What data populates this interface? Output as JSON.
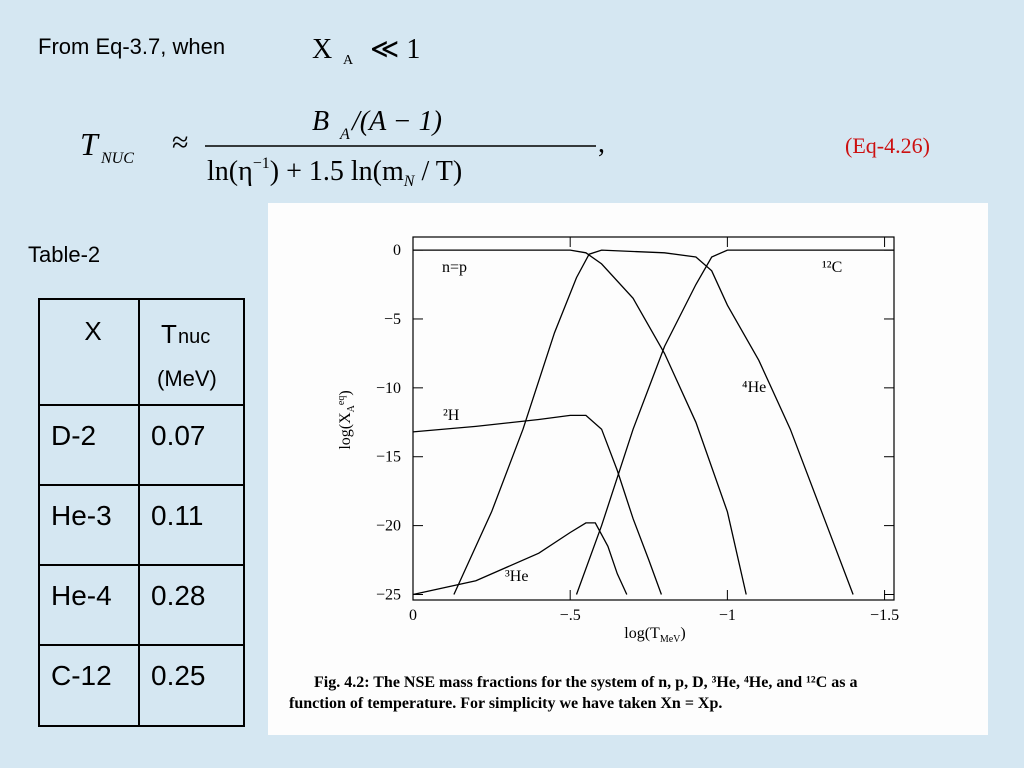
{
  "header": {
    "text": "From Eq-3.7,  when",
    "x_symbol": "X",
    "x_subscript": "A",
    "x_relation": "≪ 1"
  },
  "formula": {
    "lhs": "T",
    "lhs_subscript": "NUC",
    "relation": "≈",
    "numerator": "B",
    "numerator_subscript": "A",
    "numerator_rest": " /(A − 1)",
    "denominator": "ln(η",
    "denominator_power": "−1",
    "denominator_middle": ") + 1.5 ln(m",
    "denominator_subscript": "N",
    "denominator_end": " / T)",
    "trailing": ","
  },
  "equation_label": "(Eq-4.26)",
  "table_title": "Table-2",
  "table": {
    "header": {
      "x": "X",
      "t": "T",
      "t_subscript": "nuc",
      "unit": "(MeV)"
    },
    "rows": [
      [
        "D-2",
        "0.07"
      ],
      [
        "He-3",
        "0.11"
      ],
      [
        "He-4",
        "0.28"
      ],
      [
        "C-12",
        "0.25"
      ]
    ]
  },
  "chart_data": {
    "type": "line",
    "x_label": {
      "text": "log(T",
      "sub": "MeV",
      "close": ")"
    },
    "y_label": {
      "text": "log(X",
      "sub": "A",
      "sup": "eq",
      "close": ")"
    },
    "xlim": [
      0,
      -1.53
    ],
    "ylim": [
      -25.4,
      0.95
    ],
    "xticks": [
      0,
      {
        "value": -0.5,
        "label": "−.5"
      },
      {
        "value": -1,
        "label": "−1"
      },
      {
        "value": -1.5,
        "label": "−1.5"
      }
    ],
    "yticks": [
      0,
      {
        "value": -5,
        "label": "−5"
      },
      {
        "value": -10,
        "label": "−10"
      },
      {
        "value": -15,
        "label": "−15"
      },
      {
        "value": -20,
        "label": "−20"
      },
      {
        "value": -25,
        "label": "−25"
      }
    ],
    "series": [
      {
        "name": "n=p",
        "color": "#000000",
        "x": [
          0,
          -0.5,
          -0.55,
          -0.6,
          -0.7,
          -0.8,
          -0.9,
          -1.0,
          -1.06
        ],
        "values": [
          0,
          0,
          -0.2,
          -1,
          -3.5,
          -7.5,
          -12.5,
          -19,
          -25
        ]
      },
      {
        "name": "²H",
        "color": "#000000",
        "x": [
          0,
          -0.2,
          -0.4,
          -0.5,
          -0.55,
          -0.6,
          -0.65,
          -0.7,
          -0.75,
          -0.79
        ],
        "values": [
          -13.2,
          -12.8,
          -12.3,
          -12,
          -12,
          -13,
          -16,
          -19.5,
          -22.5,
          -25
        ]
      },
      {
        "name": "³He",
        "color": "#000000",
        "x": [
          0,
          -0.2,
          -0.4,
          -0.5,
          -0.55,
          -0.58,
          -0.62,
          -0.65,
          -0.68
        ],
        "values": [
          -25,
          -24,
          -22,
          -20.5,
          -19.8,
          -19.8,
          -21.5,
          -23.5,
          -25
        ]
      },
      {
        "name": "⁴He",
        "color": "#000000",
        "x": [
          -0.13,
          -0.25,
          -0.35,
          -0.45,
          -0.52,
          -0.56,
          -0.6,
          -0.7,
          -0.8,
          -0.9,
          -0.95,
          -1.0,
          -1.1,
          -1.2,
          -1.3,
          -1.4
        ],
        "values": [
          -25,
          -19,
          -13,
          -6,
          -2,
          -0.3,
          0,
          -0.1,
          -0.2,
          -0.5,
          -1.5,
          -4,
          -8,
          -13,
          -19,
          -25
        ]
      },
      {
        "name": "¹²C",
        "color": "#000000",
        "x": [
          -0.52,
          -0.6,
          -0.7,
          -0.8,
          -0.9,
          -0.95,
          -1.0,
          -1.53
        ],
        "values": [
          -25,
          -20,
          -13,
          -7,
          -2.5,
          -0.5,
          0,
          0
        ]
      }
    ],
    "caption": [
      "Fig. 4.2: The NSE mass fractions for the system of n, p, D, ³He, ⁴He, and ¹²C as a",
      "function of temperature.  For simplicity we have taken Xn = Xp."
    ]
  }
}
